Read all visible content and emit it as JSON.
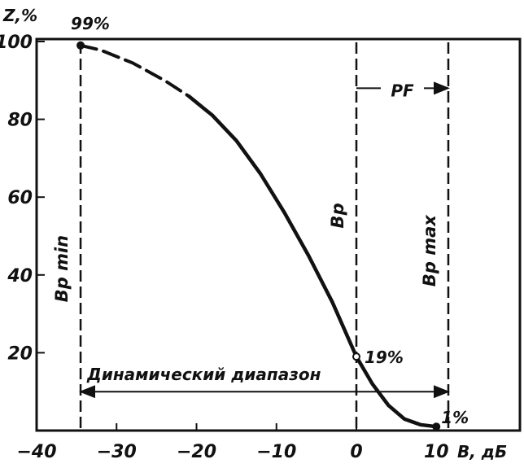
{
  "chart_data": {
    "type": "line",
    "title": "",
    "xlabel": "B, дБ",
    "ylabel": "Z,%",
    "xlim": [
      -40,
      15
    ],
    "ylim": [
      0,
      100
    ],
    "x_ticks": [
      -40,
      -30,
      -20,
      -10,
      0,
      10
    ],
    "x_tick_labels": [
      "−40",
      "−30",
      "−20",
      "−10",
      "0",
      "10"
    ],
    "y_ticks": [
      20,
      40,
      60,
      80,
      100
    ],
    "y_tick_labels": [
      "20",
      "40",
      "60",
      "80",
      "100"
    ],
    "grid": false,
    "legend": "none",
    "series": [
      {
        "dashed_points": [
          [
            -34.5,
            99
          ],
          [
            -32,
            97.8
          ],
          [
            -28,
            94.5
          ],
          [
            -24,
            90
          ],
          [
            -21,
            86
          ]
        ],
        "solid_points": [
          [
            -21,
            86
          ],
          [
            -18,
            81
          ],
          [
            -15,
            74.5
          ],
          [
            -12,
            66
          ],
          [
            -9,
            56
          ],
          [
            -6,
            45
          ],
          [
            -3,
            33
          ],
          [
            0,
            19
          ],
          [
            2,
            12
          ],
          [
            4,
            6.5
          ],
          [
            6,
            3
          ],
          [
            8,
            1.5
          ],
          [
            10,
            1
          ]
        ]
      }
    ],
    "vertical_lines": [
      {
        "x": -34.5,
        "label": "Bp min"
      },
      {
        "x": 0,
        "label": "Bp"
      },
      {
        "x": 11.5,
        "label": "Bp max"
      }
    ],
    "point_labels": [
      {
        "x": -34.5,
        "y": 99,
        "text": "99%"
      },
      {
        "x": 0,
        "y": 19,
        "text": "19%"
      },
      {
        "x": 10,
        "y": 1,
        "text": "1%"
      }
    ],
    "range_annotations": [
      {
        "from": -34.5,
        "to": 11.5,
        "y": 10,
        "text": "Динамический диапазон"
      },
      {
        "from": 0,
        "to": 11.5,
        "y": 88,
        "text": "PF"
      }
    ]
  }
}
